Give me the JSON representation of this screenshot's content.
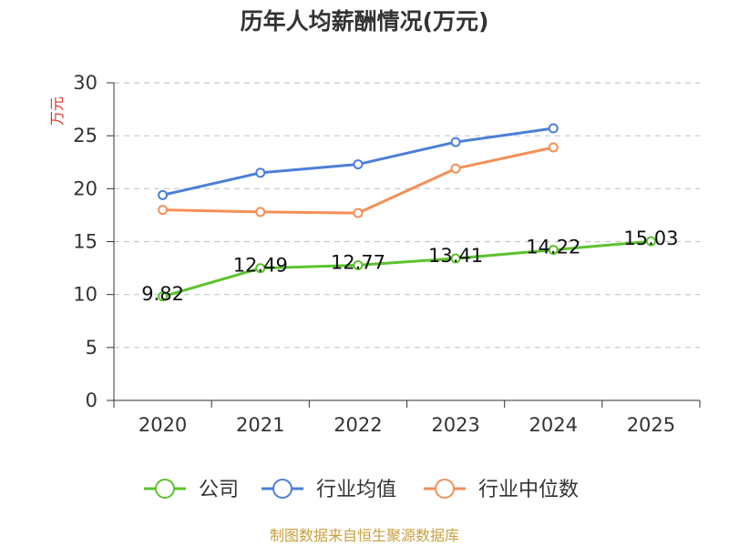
{
  "chart_data": {
    "type": "line",
    "title": "历年人均薪酬情况(万元)",
    "ylabel": "万元",
    "categories": [
      "2020",
      "2021",
      "2022",
      "2023",
      "2024",
      "2025"
    ],
    "ylim": [
      0,
      30
    ],
    "yticks": [
      0,
      5,
      10,
      15,
      20,
      25,
      30
    ],
    "grid": true,
    "grid_style": "dashed",
    "legend_position": "bottom",
    "series": [
      {
        "name": "公司",
        "color": "#5dc22d",
        "show_labels": true,
        "values": [
          9.82,
          12.49,
          12.77,
          13.41,
          14.22,
          15.03
        ]
      },
      {
        "name": "行业均值",
        "color": "#4b7fd8",
        "show_labels": false,
        "values": [
          19.4,
          21.5,
          22.3,
          24.4,
          25.7,
          null
        ]
      },
      {
        "name": "行业中位数",
        "color": "#f58f58",
        "show_labels": false,
        "values": [
          18.0,
          17.8,
          17.7,
          21.9,
          23.9,
          null
        ]
      }
    ]
  },
  "footer": {
    "source": "制图数据来自恒生聚源数据库"
  },
  "colors": {
    "ylabel": "#e0312d",
    "footer": "#c8a13e",
    "axis": "#333333",
    "grid": "#c8c8c8"
  }
}
